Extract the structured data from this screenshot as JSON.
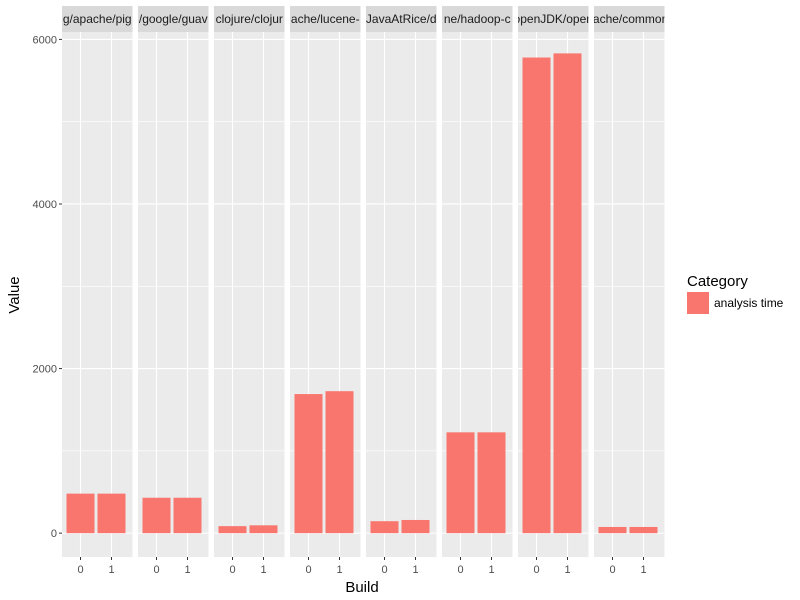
{
  "chart_data": {
    "type": "bar",
    "facets": [
      {
        "label": "g/apache/pig",
        "values": [
          480,
          480
        ]
      },
      {
        "label": "/google/guav",
        "values": [
          430,
          430
        ]
      },
      {
        "label": "clojure/clojur",
        "values": [
          85,
          95
        ]
      },
      {
        "label": "ache/lucene-",
        "values": [
          1690,
          1725
        ]
      },
      {
        "label": "JavaAtRice/d",
        "values": [
          145,
          160
        ]
      },
      {
        "label": "ne/hadoop-c",
        "values": [
          1225,
          1225
        ]
      },
      {
        "label": "openJDK/open",
        "values": [
          5780,
          5830
        ]
      },
      {
        "label": "ache/commor",
        "values": [
          75,
          75
        ]
      }
    ],
    "categories": [
      "0",
      "1"
    ],
    "y_ticks": [
      0,
      2000,
      4000,
      6000
    ],
    "y_tick_labels": [
      "0",
      "2000",
      "4000",
      "6000"
    ],
    "ylim": [
      -290,
      6090
    ],
    "xlabel": "Build",
    "ylabel": "Value",
    "legend": {
      "title": "Category",
      "items": [
        {
          "label": "analysis time",
          "color": "#F8766D"
        }
      ],
      "placement": "right"
    },
    "grid": true,
    "colors": {
      "bar": "#F8766D",
      "panel": "#EBEBEB",
      "strip": "#D9D9D9",
      "grid": "#FFFFFF"
    }
  }
}
